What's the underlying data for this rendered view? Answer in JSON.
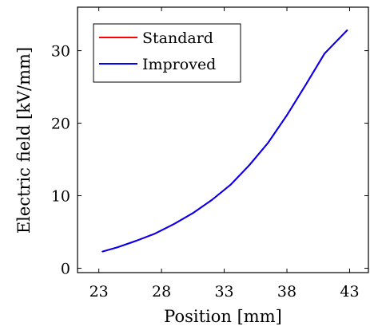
{
  "chart_data": {
    "type": "line",
    "xlabel": "Position [mm]",
    "ylabel": "Electric field [kV/mm]",
    "xlim": [
      21.3,
      44.5
    ],
    "ylim": [
      -0.6,
      36.0
    ],
    "xticks": [
      23,
      28,
      33,
      38,
      43
    ],
    "yticks": [
      0,
      10,
      20,
      30
    ],
    "grid": false,
    "legend_position": "top-left",
    "series": [
      {
        "name": "Standard",
        "color": "#ff0000",
        "x": [
          23.3,
          24.5,
          26,
          27.5,
          29,
          30.5,
          32,
          33.5,
          35,
          36.5,
          38,
          39.5,
          41,
          42.8
        ],
        "y": [
          2.3,
          2.9,
          3.8,
          4.8,
          6.1,
          7.6,
          9.4,
          11.5,
          14.2,
          17.3,
          21.1,
          25.3,
          29.6,
          32.8
        ]
      },
      {
        "name": "Improved",
        "color": "#0000ff",
        "x": [
          23.3,
          24.5,
          26,
          27.5,
          29,
          30.5,
          32,
          33.5,
          35,
          36.5,
          38,
          39.5,
          41,
          42.8
        ],
        "y": [
          2.3,
          2.9,
          3.8,
          4.8,
          6.1,
          7.6,
          9.4,
          11.5,
          14.2,
          17.3,
          21.1,
          25.3,
          29.6,
          32.8
        ]
      }
    ]
  }
}
